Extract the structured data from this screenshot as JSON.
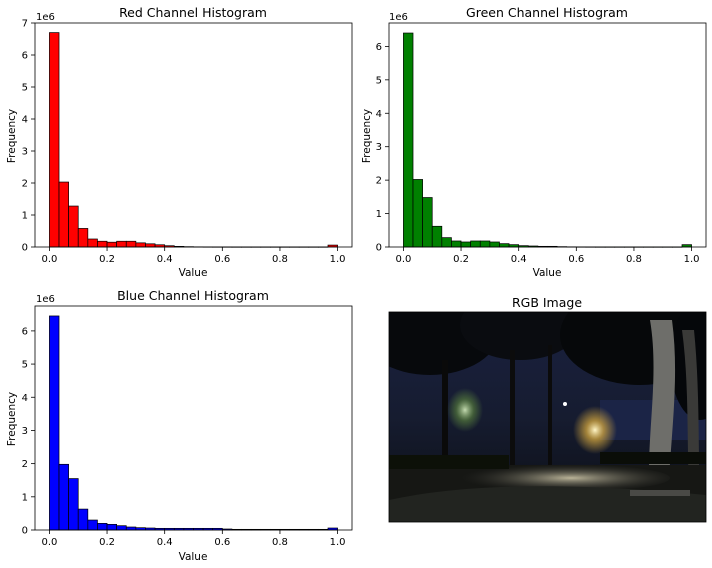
{
  "figure": {
    "panels": [
      {
        "title": "Red Channel Histogram",
        "xlabel": "Value",
        "ylabel": "Frequency",
        "offset_label": "1e6"
      },
      {
        "title": "Green Channel Histogram",
        "xlabel": "Value",
        "ylabel": "Frequency",
        "offset_label": "1e6"
      },
      {
        "title": "Blue Channel Histogram",
        "xlabel": "Value",
        "ylabel": "Frequency",
        "offset_label": "1e6"
      }
    ],
    "image_panel": {
      "title": "RGB Image"
    }
  },
  "chart_data": [
    {
      "type": "bar",
      "title": "Red Channel Histogram",
      "xlabel": "Value",
      "ylabel": "Frequency",
      "y_offset": "1e6",
      "bar_color": "#ff0000",
      "edge_color": "#000000",
      "bins": 30,
      "bin_range": [
        0,
        1
      ],
      "xlim": [
        -0.05,
        1.05
      ],
      "ylim": [
        0,
        7
      ],
      "xticks": [
        0.0,
        0.2,
        0.4,
        0.6,
        0.8,
        1.0
      ],
      "yticks": [
        0,
        1,
        2,
        3,
        4,
        5,
        6,
        7
      ],
      "values": [
        6.7,
        2.03,
        1.28,
        0.58,
        0.25,
        0.18,
        0.15,
        0.18,
        0.18,
        0.13,
        0.1,
        0.07,
        0.04,
        0.02,
        0.01,
        0.005,
        0.003,
        0.002,
        0.002,
        0.001,
        0.001,
        0.001,
        0.001,
        0.001,
        0.001,
        0.001,
        0.001,
        0.001,
        0.001,
        0.06
      ]
    },
    {
      "type": "bar",
      "title": "Green Channel Histogram",
      "xlabel": "Value",
      "ylabel": "Frequency",
      "y_offset": "1e6",
      "bar_color": "#008000",
      "edge_color": "#000000",
      "bins": 30,
      "bin_range": [
        0,
        1
      ],
      "xlim": [
        -0.05,
        1.05
      ],
      "ylim": [
        0,
        6.7
      ],
      "xticks": [
        0.0,
        0.2,
        0.4,
        0.6,
        0.8,
        1.0
      ],
      "yticks": [
        0,
        1,
        2,
        3,
        4,
        5,
        6
      ],
      "values": [
        6.4,
        2.02,
        1.48,
        0.62,
        0.28,
        0.18,
        0.15,
        0.18,
        0.18,
        0.15,
        0.1,
        0.07,
        0.04,
        0.03,
        0.02,
        0.02,
        0.01,
        0.005,
        0.003,
        0.002,
        0.001,
        0.001,
        0.001,
        0.001,
        0.001,
        0.001,
        0.001,
        0.001,
        0.001,
        0.07
      ]
    },
    {
      "type": "bar",
      "title": "Blue Channel Histogram",
      "xlabel": "Value",
      "ylabel": "Frequency",
      "y_offset": "1e6",
      "bar_color": "#0000ff",
      "edge_color": "#000000",
      "bins": 30,
      "bin_range": [
        0,
        1
      ],
      "xlim": [
        -0.05,
        1.05
      ],
      "ylim": [
        0,
        6.75
      ],
      "xticks": [
        0.0,
        0.2,
        0.4,
        0.6,
        0.8,
        1.0
      ],
      "yticks": [
        0,
        1,
        2,
        3,
        4,
        5,
        6
      ],
      "values": [
        6.45,
        1.98,
        1.55,
        0.63,
        0.3,
        0.2,
        0.17,
        0.13,
        0.09,
        0.07,
        0.06,
        0.05,
        0.05,
        0.05,
        0.05,
        0.05,
        0.05,
        0.05,
        0.03,
        0.02,
        0.02,
        0.02,
        0.02,
        0.02,
        0.02,
        0.02,
        0.02,
        0.02,
        0.02,
        0.06
      ]
    }
  ]
}
